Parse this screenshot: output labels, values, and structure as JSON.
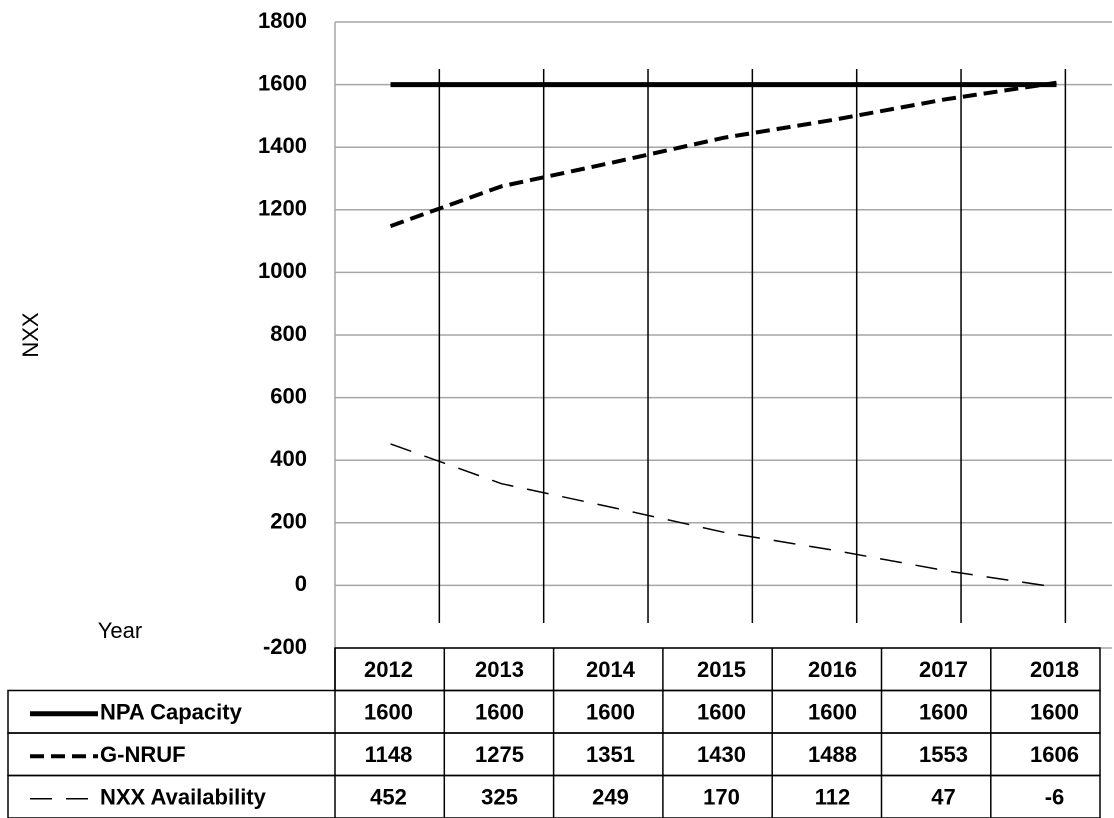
{
  "chart_data": {
    "type": "line",
    "y_label": "NXX",
    "x_label": "Year",
    "categories": [
      "2012",
      "2013",
      "2014",
      "2015",
      "2016",
      "2017",
      "2018"
    ],
    "series": [
      {
        "name": "NPA Capacity",
        "color": "#000000",
        "line_style": "solid",
        "values": [
          1600,
          1600,
          1600,
          1600,
          1600,
          1600,
          1600
        ]
      },
      {
        "name": "G-NRUF",
        "color": "#000000",
        "line_style": "dashed",
        "values": [
          1148,
          1275,
          1351,
          1430,
          1488,
          1553,
          1606
        ]
      },
      {
        "name": "NXX Availability",
        "color": "#000000",
        "line_style": "long-dashed",
        "values": [
          452,
          325,
          249,
          170,
          112,
          47,
          -6
        ]
      }
    ],
    "ylim": [
      -200,
      1800
    ],
    "yticks": [
      -200,
      0,
      200,
      400,
      600,
      800,
      1000,
      1200,
      1400,
      1600,
      1800
    ],
    "grid": true,
    "data_table": true
  }
}
